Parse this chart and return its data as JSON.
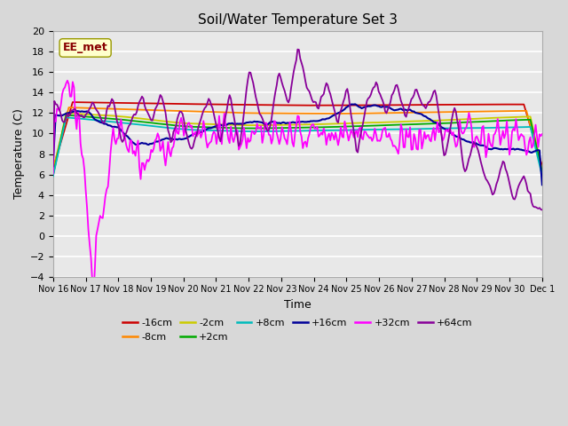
{
  "title": "Soil/Water Temperature Set 3",
  "xlabel": "Time",
  "ylabel": "Temperature (C)",
  "ylim": [
    -4,
    20
  ],
  "annotation": "EE_met",
  "series_colors": {
    "-16cm": "#cc0000",
    "-8cm": "#ff8800",
    "-2cm": "#cccc00",
    "+2cm": "#00aa00",
    "+8cm": "#00bbbb",
    "+16cm": "#000099",
    "+32cm": "#ff00ff",
    "+64cm": "#880099"
  },
  "series_lw": {
    "-16cm": 1.3,
    "-8cm": 1.3,
    "-2cm": 1.3,
    "+2cm": 1.3,
    "+8cm": 1.3,
    "+16cm": 1.5,
    "+32cm": 1.3,
    "+64cm": 1.3
  },
  "xtick_labels": [
    "Nov 16",
    "Nov 17",
    "Nov 18",
    "Nov 19",
    "Nov 20",
    "Nov 21",
    "Nov 22",
    "Nov 23",
    "Nov 24",
    "Nov 25",
    "Nov 26",
    "Nov 27",
    "Nov 28",
    "Nov 29",
    "Nov 30",
    "Dec 1"
  ],
  "fig_bg": "#d8d8d8",
  "ax_bg": "#e8e8e8",
  "grid_color": "#ffffff"
}
